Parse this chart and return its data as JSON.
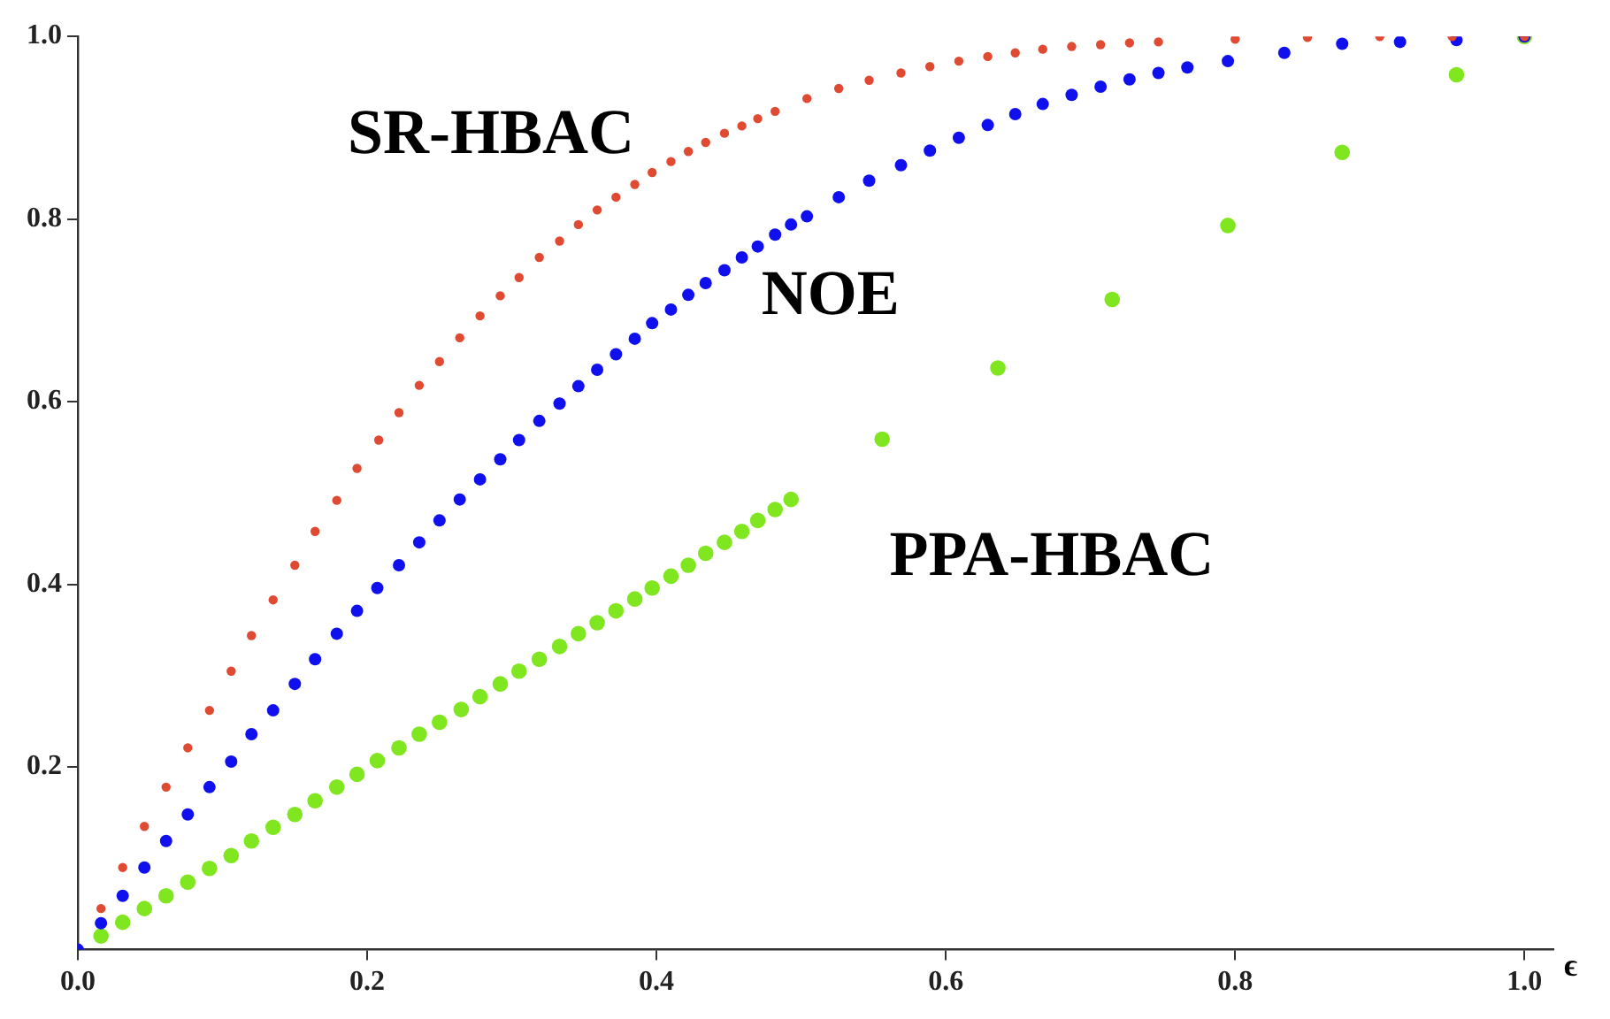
{
  "chart_data": {
    "type": "scatter",
    "xlabel": "ϵ",
    "marker": "circle",
    "legend": false,
    "grid": false,
    "xlim": [
      0,
      1.02
    ],
    "ylim": [
      0,
      1
    ],
    "xticks": [
      {
        "value": 0,
        "label": "0.0"
      },
      0.2,
      0.4,
      0.6,
      0.8,
      {
        "value": 1,
        "label": "1.0"
      }
    ],
    "yticks": [
      0.2,
      0.4,
      0.6,
      0.8,
      {
        "value": 1,
        "label": "1.0"
      }
    ],
    "series": [
      {
        "name": "SR-HBAC",
        "color": "#e04a32",
        "x": [
          0.016,
          0.031,
          0.046,
          0.061,
          0.076,
          0.091,
          0.106,
          0.12,
          0.135,
          0.15,
          0.164,
          0.179,
          0.193,
          0.208,
          0.222,
          0.236,
          0.25,
          0.264,
          0.278,
          0.292,
          0.305,
          0.319,
          0.333,
          0.346,
          0.359,
          0.372,
          0.385,
          0.397,
          0.41,
          0.422,
          0.434,
          0.447,
          0.459,
          0.47,
          0.482,
          0.504,
          0.526,
          0.547,
          0.569,
          0.589,
          0.609,
          0.629,
          0.648,
          0.667,
          0.687,
          0.707,
          0.727,
          0.747,
          0.8,
          0.85,
          0.9,
          0.95,
          1.0
        ],
        "values": [
          0.045,
          0.09,
          0.135,
          0.178,
          0.221,
          0.262,
          0.305,
          0.344,
          0.383,
          0.421,
          0.458,
          0.492,
          0.527,
          0.558,
          0.588,
          0.618,
          0.644,
          0.67,
          0.694,
          0.716,
          0.736,
          0.758,
          0.776,
          0.794,
          0.81,
          0.824,
          0.838,
          0.851,
          0.863,
          0.874,
          0.884,
          0.894,
          0.902,
          0.91,
          0.918,
          0.932,
          0.943,
          0.952,
          0.96,
          0.967,
          0.973,
          0.978,
          0.982,
          0.986,
          0.989,
          0.991,
          0.993,
          0.994,
          0.997,
          0.999,
          1.0,
          1.0,
          1.0
        ]
      },
      {
        "name": "NOE",
        "color": "#1010ee",
        "x": [
          0,
          0.016,
          0.031,
          0.046,
          0.061,
          0.076,
          0.091,
          0.106,
          0.12,
          0.135,
          0.15,
          0.164,
          0.179,
          0.193,
          0.207,
          0.222,
          0.236,
          0.25,
          0.264,
          0.278,
          0.292,
          0.305,
          0.319,
          0.333,
          0.346,
          0.359,
          0.372,
          0.385,
          0.397,
          0.41,
          0.422,
          0.434,
          0.447,
          0.459,
          0.47,
          0.482,
          0.493,
          0.504,
          0.526,
          0.547,
          0.569,
          0.589,
          0.609,
          0.629,
          0.648,
          0.667,
          0.687,
          0.707,
          0.727,
          0.747,
          0.767,
          0.795,
          0.834,
          0.874,
          0.914,
          0.953,
          1.0
        ],
        "values": [
          0,
          0.029,
          0.059,
          0.09,
          0.119,
          0.148,
          0.178,
          0.206,
          0.236,
          0.262,
          0.291,
          0.318,
          0.346,
          0.371,
          0.396,
          0.421,
          0.446,
          0.47,
          0.493,
          0.515,
          0.537,
          0.558,
          0.579,
          0.598,
          0.617,
          0.635,
          0.652,
          0.669,
          0.686,
          0.701,
          0.717,
          0.73,
          0.744,
          0.758,
          0.77,
          0.783,
          0.794,
          0.803,
          0.824,
          0.842,
          0.859,
          0.875,
          0.889,
          0.903,
          0.915,
          0.926,
          0.936,
          0.945,
          0.953,
          0.96,
          0.966,
          0.973,
          0.982,
          0.992,
          0.994,
          0.996,
          1.0
        ]
      },
      {
        "name": "PPA-HBAC",
        "color": "#80e620",
        "x": [
          0.016,
          0.031,
          0.046,
          0.061,
          0.076,
          0.091,
          0.106,
          0.12,
          0.135,
          0.15,
          0.164,
          0.179,
          0.193,
          0.207,
          0.222,
          0.236,
          0.25,
          0.265,
          0.278,
          0.292,
          0.305,
          0.319,
          0.333,
          0.346,
          0.359,
          0.372,
          0.385,
          0.397,
          0.41,
          0.422,
          0.434,
          0.447,
          0.459,
          0.47,
          0.482,
          0.493,
          0.556,
          0.636,
          0.715,
          0.795,
          0.874,
          0.953,
          1.0
        ],
        "values": [
          0.015,
          0.03,
          0.045,
          0.059,
          0.074,
          0.089,
          0.103,
          0.119,
          0.134,
          0.148,
          0.163,
          0.178,
          0.192,
          0.207,
          0.221,
          0.236,
          0.249,
          0.263,
          0.277,
          0.291,
          0.305,
          0.318,
          0.332,
          0.346,
          0.358,
          0.371,
          0.384,
          0.396,
          0.409,
          0.421,
          0.434,
          0.446,
          0.458,
          0.47,
          0.482,
          0.493,
          0.559,
          0.637,
          0.712,
          0.793,
          0.873,
          0.958,
          1.0
        ]
      }
    ]
  }
}
